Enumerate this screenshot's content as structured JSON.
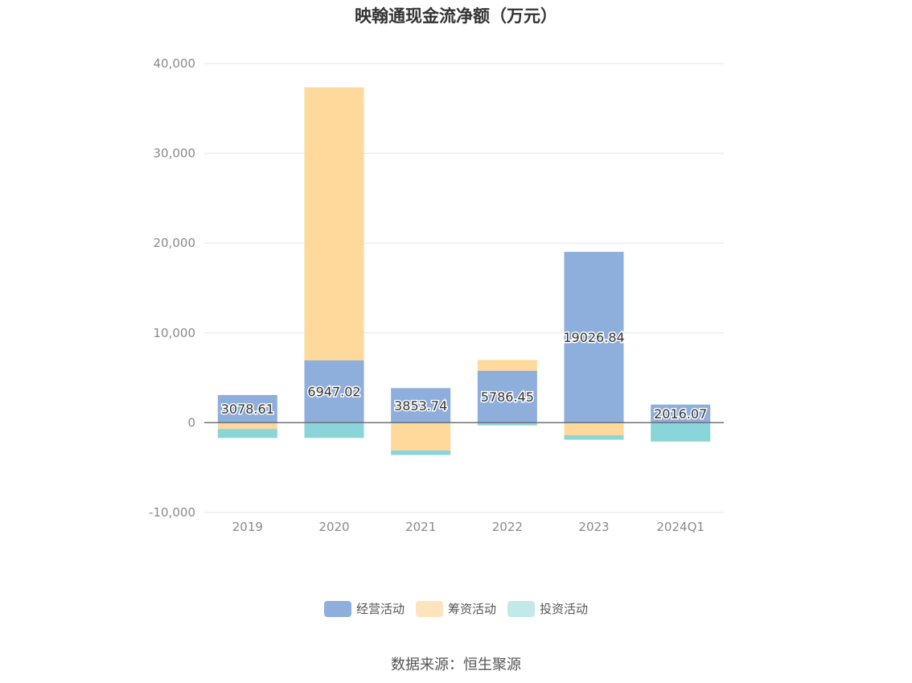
{
  "chart_data": {
    "type": "bar",
    "title": "映翰通现金流净额（万元）",
    "categories": [
      "2019",
      "2020",
      "2021",
      "2022",
      "2023",
      "2024Q1"
    ],
    "series": [
      {
        "name": "经营活动",
        "values": [
          3078.61,
          6947.02,
          3853.74,
          5786.45,
          19026.84,
          2016.07
        ],
        "color": "#8eaedb",
        "labels": [
          "3078.61",
          "6947.02",
          "3853.74",
          "5786.45",
          "19026.84",
          "2016.07"
        ]
      },
      {
        "name": "筹资活动",
        "values": [
          -700,
          30400,
          -3100,
          1200,
          -1400,
          0
        ],
        "color": "#fed99b"
      },
      {
        "name": "投资活动",
        "values": [
          -1000,
          -1700,
          -500,
          -300,
          -500,
          -2100
        ],
        "color": "#89d5d9"
      }
    ],
    "yticks": [
      "40,000",
      "30,000",
      "20,000",
      "10,000",
      "0",
      "-10,000"
    ],
    "ylim": [
      -10000,
      40000
    ],
    "stacked": true,
    "grid": true,
    "legend_position": "bottom",
    "legend_colors": [
      "#8eaedb",
      "#ffe3bd",
      "#c2e8ea"
    ]
  },
  "footer": {
    "source": "数据来源：恒生聚源"
  }
}
